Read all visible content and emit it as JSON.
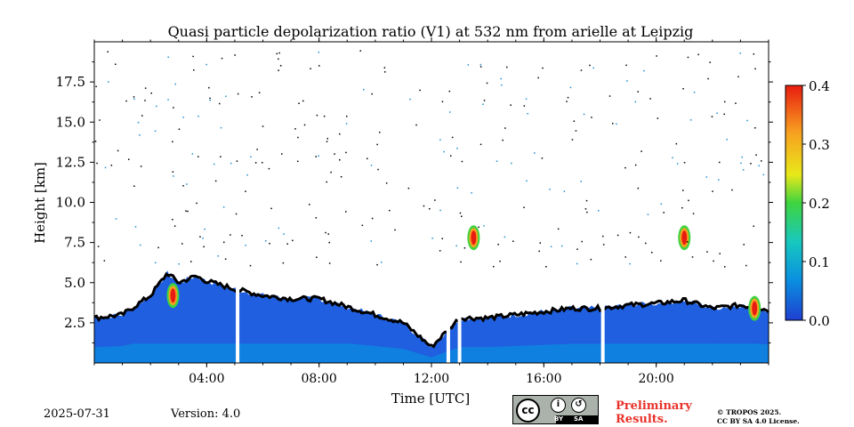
{
  "chart_data": {
    "type": "heatmap",
    "title": "Quasi particle depolarization ratio (V1) at 532 nm from arielle at Leipzig",
    "xlabel": "Time [UTC]",
    "ylabel": "Height [km]",
    "xlim": [
      0,
      24
    ],
    "ylim": [
      0,
      20
    ],
    "x_ticks": [
      "04:00",
      "08:00",
      "12:00",
      "16:00",
      "20:00"
    ],
    "x_tick_values": [
      4,
      8,
      12,
      16,
      20
    ],
    "y_ticks": [
      "2.5",
      "5.0",
      "7.5",
      "10.0",
      "12.5",
      "15.0",
      "17.5"
    ],
    "y_tick_values": [
      2.5,
      5.0,
      7.5,
      10.0,
      12.5,
      15.0,
      17.5
    ],
    "colorbar": {
      "range": [
        0,
        0.4
      ],
      "ticks": [
        "0.0",
        "0.1",
        "0.2",
        "0.3",
        "0.4"
      ],
      "tick_values": [
        0,
        0.1,
        0.2,
        0.3,
        0.4
      ],
      "colormap": [
        "#1f3fd0",
        "#0a8fe0",
        "#17c7c0",
        "#3fd43f",
        "#e8e81a",
        "#f7a020",
        "#e81c10"
      ]
    },
    "boundary_layer_top_km": [
      [
        0.0,
        2.8
      ],
      [
        1.0,
        3.0
      ],
      [
        2.0,
        4.2
      ],
      [
        2.6,
        5.6
      ],
      [
        3.0,
        5.0
      ],
      [
        3.6,
        5.4
      ],
      [
        4.0,
        5.1
      ],
      [
        5.0,
        4.6
      ],
      [
        6.0,
        4.2
      ],
      [
        7.0,
        4.0
      ],
      [
        8.0,
        4.0
      ],
      [
        9.0,
        3.5
      ],
      [
        10.0,
        3.0
      ],
      [
        11.0,
        2.5
      ],
      [
        12.0,
        1.0
      ],
      [
        13.0,
        2.8
      ],
      [
        14.0,
        2.8
      ],
      [
        15.0,
        3.0
      ],
      [
        16.0,
        3.2
      ],
      [
        17.0,
        3.4
      ],
      [
        18.0,
        3.4
      ],
      [
        19.0,
        3.6
      ],
      [
        20.0,
        3.7
      ],
      [
        21.0,
        3.9
      ],
      [
        22.0,
        3.4
      ],
      [
        23.0,
        3.6
      ],
      [
        24.0,
        3.3
      ]
    ],
    "high_depol_features": [
      {
        "time_h": 2.8,
        "height_km": 4.2,
        "value": 0.35
      },
      {
        "time_h": 13.5,
        "height_km": 7.8,
        "value": 0.38
      },
      {
        "time_h": 21.0,
        "height_km": 7.8,
        "value": 0.36
      },
      {
        "time_h": 23.5,
        "height_km": 3.4,
        "value": 0.33
      }
    ],
    "data_gaps_h": [
      5.1,
      12.6,
      13.0,
      18.1
    ]
  },
  "footer": {
    "date": "2025-07-31",
    "version": "Version: 4.0",
    "preliminary_line1": "Preliminary",
    "preliminary_line2": "Results.",
    "copyright_line1": "© TROPOS 2025.",
    "copyright_line2": "CC BY SA 4.0 License.",
    "license_badge": {
      "main": "cc",
      "by": "BY",
      "sa": "SA"
    }
  }
}
